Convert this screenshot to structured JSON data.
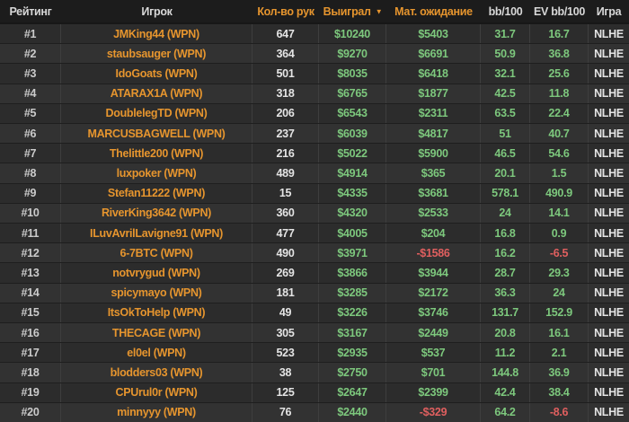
{
  "header": {
    "sort_icon": "▼",
    "columns": [
      {
        "key": "rank",
        "label": "Рейтинг",
        "accent": false,
        "sorted": false
      },
      {
        "key": "player",
        "label": "Игрок",
        "accent": false,
        "sorted": false
      },
      {
        "key": "hands",
        "label": "Кол-во рук",
        "accent": true,
        "sorted": false
      },
      {
        "key": "won",
        "label": "Выиграл",
        "accent": true,
        "sorted": true
      },
      {
        "key": "expectation",
        "label": "Мат. ожидание",
        "accent": true,
        "sorted": false
      },
      {
        "key": "bb100",
        "label": "bb/100",
        "accent": false,
        "sorted": false
      },
      {
        "key": "evbb100",
        "label": "EV bb/100",
        "accent": false,
        "sorted": false
      },
      {
        "key": "game",
        "label": "Игра",
        "accent": false,
        "sorted": false
      }
    ]
  },
  "rows": [
    {
      "rank": "#1",
      "player": "JMKing44 (WPN)",
      "hands": "647",
      "won": "$10240",
      "expectation": "$5403",
      "bb100": "31.7",
      "evbb100": "16.7",
      "game": "NLHE"
    },
    {
      "rank": "#2",
      "player": "staubsauger (WPN)",
      "hands": "364",
      "won": "$9270",
      "expectation": "$6691",
      "bb100": "50.9",
      "evbb100": "36.8",
      "game": "NLHE"
    },
    {
      "rank": "#3",
      "player": "IdoGoats (WPN)",
      "hands": "501",
      "won": "$8035",
      "expectation": "$6418",
      "bb100": "32.1",
      "evbb100": "25.6",
      "game": "NLHE"
    },
    {
      "rank": "#4",
      "player": "ATARAX1A (WPN)",
      "hands": "318",
      "won": "$6765",
      "expectation": "$1877",
      "bb100": "42.5",
      "evbb100": "11.8",
      "game": "NLHE"
    },
    {
      "rank": "#5",
      "player": "DoublelegTD (WPN)",
      "hands": "206",
      "won": "$6543",
      "expectation": "$2311",
      "bb100": "63.5",
      "evbb100": "22.4",
      "game": "NLHE"
    },
    {
      "rank": "#6",
      "player": "MARCUSBAGWELL (WPN)",
      "hands": "237",
      "won": "$6039",
      "expectation": "$4817",
      "bb100": "51",
      "evbb100": "40.7",
      "game": "NLHE"
    },
    {
      "rank": "#7",
      "player": "Thelittle200 (WPN)",
      "hands": "216",
      "won": "$5022",
      "expectation": "$5900",
      "bb100": "46.5",
      "evbb100": "54.6",
      "game": "NLHE"
    },
    {
      "rank": "#8",
      "player": "luxpoker (WPN)",
      "hands": "489",
      "won": "$4914",
      "expectation": "$365",
      "bb100": "20.1",
      "evbb100": "1.5",
      "game": "NLHE"
    },
    {
      "rank": "#9",
      "player": "Stefan11222 (WPN)",
      "hands": "15",
      "won": "$4335",
      "expectation": "$3681",
      "bb100": "578.1",
      "evbb100": "490.9",
      "game": "NLHE"
    },
    {
      "rank": "#10",
      "player": "RiverKing3642 (WPN)",
      "hands": "360",
      "won": "$4320",
      "expectation": "$2533",
      "bb100": "24",
      "evbb100": "14.1",
      "game": "NLHE"
    },
    {
      "rank": "#11",
      "player": "ILuvAvrilLavigne91 (WPN)",
      "hands": "477",
      "won": "$4005",
      "expectation": "$204",
      "bb100": "16.8",
      "evbb100": "0.9",
      "game": "NLHE"
    },
    {
      "rank": "#12",
      "player": "6-7BTC (WPN)",
      "hands": "490",
      "won": "$3971",
      "expectation": "-$1586",
      "bb100": "16.2",
      "evbb100": "-6.5",
      "game": "NLHE"
    },
    {
      "rank": "#13",
      "player": "notvrygud (WPN)",
      "hands": "269",
      "won": "$3866",
      "expectation": "$3944",
      "bb100": "28.7",
      "evbb100": "29.3",
      "game": "NLHE"
    },
    {
      "rank": "#14",
      "player": "spicymayo (WPN)",
      "hands": "181",
      "won": "$3285",
      "expectation": "$2172",
      "bb100": "36.3",
      "evbb100": "24",
      "game": "NLHE"
    },
    {
      "rank": "#15",
      "player": "ItsOkToHelp (WPN)",
      "hands": "49",
      "won": "$3226",
      "expectation": "$3746",
      "bb100": "131.7",
      "evbb100": "152.9",
      "game": "NLHE"
    },
    {
      "rank": "#16",
      "player": "THECAGE (WPN)",
      "hands": "305",
      "won": "$3167",
      "expectation": "$2449",
      "bb100": "20.8",
      "evbb100": "16.1",
      "game": "NLHE"
    },
    {
      "rank": "#17",
      "player": "el0el (WPN)",
      "hands": "523",
      "won": "$2935",
      "expectation": "$537",
      "bb100": "11.2",
      "evbb100": "2.1",
      "game": "NLHE"
    },
    {
      "rank": "#18",
      "player": "blodders03 (WPN)",
      "hands": "38",
      "won": "$2750",
      "expectation": "$701",
      "bb100": "144.8",
      "evbb100": "36.9",
      "game": "NLHE"
    },
    {
      "rank": "#19",
      "player": "CPUrul0r (WPN)",
      "hands": "125",
      "won": "$2647",
      "expectation": "$2399",
      "bb100": "42.4",
      "evbb100": "38.4",
      "game": "NLHE"
    },
    {
      "rank": "#20",
      "player": "minnyyy (WPN)",
      "hands": "76",
      "won": "$2440",
      "expectation": "-$329",
      "bb100": "64.2",
      "evbb100": "-8.6",
      "game": "NLHE"
    }
  ],
  "colors": {
    "accent_orange": "#e6952e",
    "positive_green": "#7dc87d",
    "negative_red": "#e05f5f",
    "header_bg": "#1c1c1c"
  }
}
